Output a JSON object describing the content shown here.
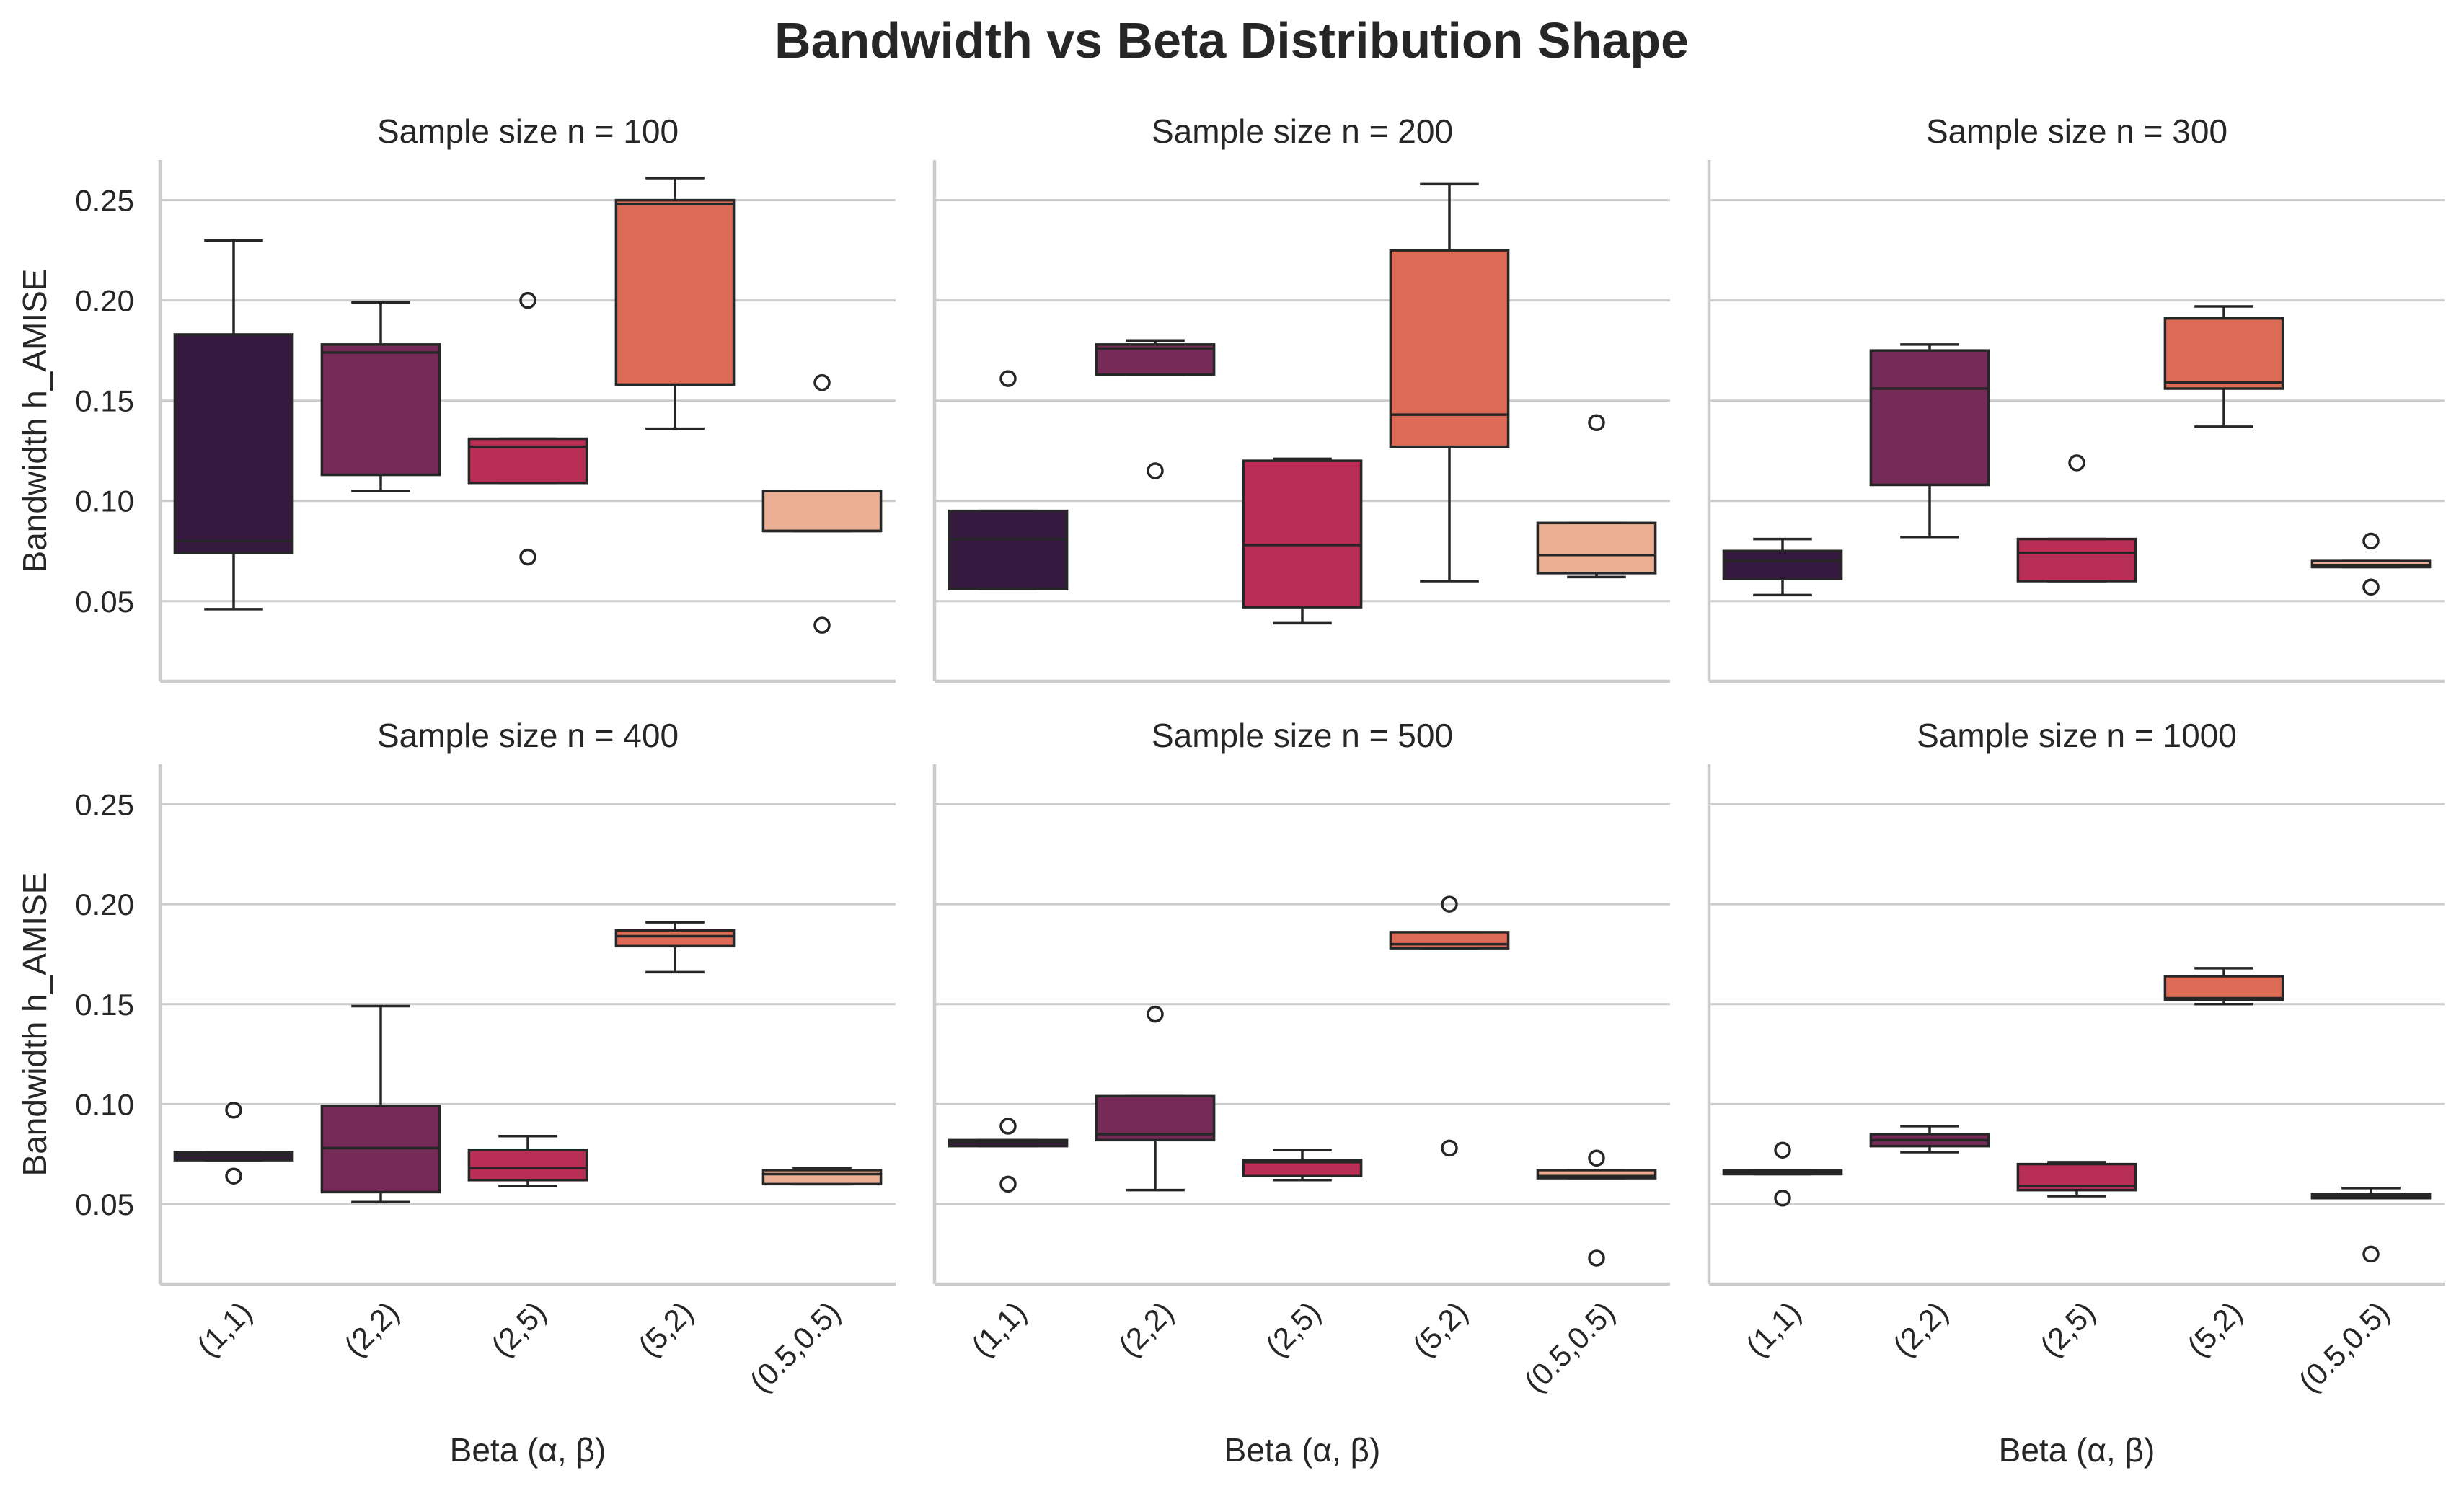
{
  "chart_data": {
    "type": "box",
    "title": "Bandwidth vs Beta Distribution Shape",
    "xlabel": "Beta (α, β)",
    "ylabel": "Bandwidth h_AMISE",
    "categories": [
      "(1,1)",
      "(2,2)",
      "(2,5)",
      "(5,2)",
      "(0.5,0.5)"
    ],
    "colors": [
      "#35193e",
      "#701f57",
      "#ad1759",
      "#e13342",
      "#f37651",
      "#f6b48f"
    ],
    "category_colors": [
      "#35193e",
      "#762a57",
      "#b92e54",
      "#dd6b55",
      "#ebb093"
    ],
    "ylim": [
      0.01,
      0.27
    ],
    "yticks": [
      0.05,
      0.1,
      0.15,
      0.2,
      0.25
    ],
    "ytick_labels": [
      "0.05",
      "0.10",
      "0.15",
      "0.20",
      "0.25"
    ],
    "grid": true,
    "panels": [
      {
        "title": "Sample size n = 100",
        "boxes": [
          {
            "category": "(1,1)",
            "whislo": 0.046,
            "q1": 0.074,
            "med": 0.08,
            "q3": 0.183,
            "whishi": 0.23,
            "fliers": []
          },
          {
            "category": "(2,2)",
            "whislo": 0.105,
            "q1": 0.113,
            "med": 0.174,
            "q3": 0.178,
            "whishi": 0.199,
            "fliers": []
          },
          {
            "category": "(2,5)",
            "whislo": 0.109,
            "q1": 0.109,
            "med": 0.127,
            "q3": 0.131,
            "whishi": 0.131,
            "fliers": [
              0.072,
              0.2
            ]
          },
          {
            "category": "(5,2)",
            "whislo": 0.136,
            "q1": 0.158,
            "med": 0.248,
            "q3": 0.25,
            "whishi": 0.261,
            "fliers": []
          },
          {
            "category": "(0.5,0.5)",
            "whislo": 0.085,
            "q1": 0.085,
            "med": 0.085,
            "q3": 0.105,
            "whishi": 0.105,
            "fliers": [
              0.038,
              0.159
            ]
          }
        ]
      },
      {
        "title": "Sample size n = 200",
        "boxes": [
          {
            "category": "(1,1)",
            "whislo": 0.056,
            "q1": 0.056,
            "med": 0.081,
            "q3": 0.095,
            "whishi": 0.095,
            "fliers": [
              0.161
            ]
          },
          {
            "category": "(2,2)",
            "whislo": 0.163,
            "q1": 0.163,
            "med": 0.176,
            "q3": 0.178,
            "whishi": 0.18,
            "fliers": [
              0.115
            ]
          },
          {
            "category": "(2,5)",
            "whislo": 0.039,
            "q1": 0.047,
            "med": 0.078,
            "q3": 0.12,
            "whishi": 0.121,
            "fliers": []
          },
          {
            "category": "(5,2)",
            "whislo": 0.06,
            "q1": 0.127,
            "med": 0.143,
            "q3": 0.225,
            "whishi": 0.258,
            "fliers": []
          },
          {
            "category": "(0.5,0.5)",
            "whislo": 0.062,
            "q1": 0.064,
            "med": 0.073,
            "q3": 0.089,
            "whishi": 0.089,
            "fliers": [
              0.139
            ]
          }
        ]
      },
      {
        "title": "Sample size n = 300",
        "boxes": [
          {
            "category": "(1,1)",
            "whislo": 0.053,
            "q1": 0.061,
            "med": 0.07,
            "q3": 0.075,
            "whishi": 0.081,
            "fliers": []
          },
          {
            "category": "(2,2)",
            "whislo": 0.082,
            "q1": 0.108,
            "med": 0.156,
            "q3": 0.175,
            "whishi": 0.178,
            "fliers": []
          },
          {
            "category": "(2,5)",
            "whislo": 0.06,
            "q1": 0.06,
            "med": 0.074,
            "q3": 0.081,
            "whishi": 0.081,
            "fliers": [
              0.119
            ]
          },
          {
            "category": "(5,2)",
            "whislo": 0.137,
            "q1": 0.156,
            "med": 0.159,
            "q3": 0.191,
            "whishi": 0.197,
            "fliers": []
          },
          {
            "category": "(0.5,0.5)",
            "whislo": 0.067,
            "q1": 0.067,
            "med": 0.068,
            "q3": 0.07,
            "whishi": 0.07,
            "fliers": [
              0.057,
              0.08
            ]
          }
        ]
      },
      {
        "title": "Sample size n = 400",
        "boxes": [
          {
            "category": "(1,1)",
            "whislo": 0.072,
            "q1": 0.072,
            "med": 0.074,
            "q3": 0.076,
            "whishi": 0.076,
            "fliers": [
              0.064,
              0.097
            ]
          },
          {
            "category": "(2,2)",
            "whislo": 0.051,
            "q1": 0.056,
            "med": 0.078,
            "q3": 0.099,
            "whishi": 0.149,
            "fliers": []
          },
          {
            "category": "(2,5)",
            "whislo": 0.059,
            "q1": 0.062,
            "med": 0.068,
            "q3": 0.077,
            "whishi": 0.084,
            "fliers": []
          },
          {
            "category": "(5,2)",
            "whislo": 0.166,
            "q1": 0.179,
            "med": 0.184,
            "q3": 0.187,
            "whishi": 0.191,
            "fliers": []
          },
          {
            "category": "(0.5,0.5)",
            "whislo": 0.06,
            "q1": 0.06,
            "med": 0.065,
            "q3": 0.067,
            "whishi": 0.068,
            "fliers": []
          }
        ]
      },
      {
        "title": "Sample size n = 500",
        "boxes": [
          {
            "category": "(1,1)",
            "whislo": 0.079,
            "q1": 0.079,
            "med": 0.081,
            "q3": 0.082,
            "whishi": 0.082,
            "fliers": [
              0.06,
              0.089
            ]
          },
          {
            "category": "(2,2)",
            "whislo": 0.057,
            "q1": 0.082,
            "med": 0.085,
            "q3": 0.104,
            "whishi": 0.104,
            "fliers": [
              0.145
            ]
          },
          {
            "category": "(2,5)",
            "whislo": 0.062,
            "q1": 0.064,
            "med": 0.071,
            "q3": 0.072,
            "whishi": 0.077,
            "fliers": []
          },
          {
            "category": "(5,2)",
            "whislo": 0.178,
            "q1": 0.178,
            "med": 0.18,
            "q3": 0.186,
            "whishi": 0.186,
            "fliers": [
              0.078,
              0.2
            ]
          },
          {
            "category": "(0.5,0.5)",
            "whislo": 0.063,
            "q1": 0.063,
            "med": 0.064,
            "q3": 0.067,
            "whishi": 0.067,
            "fliers": [
              0.023,
              0.073
            ]
          }
        ]
      },
      {
        "title": "Sample size n = 1000",
        "boxes": [
          {
            "category": "(1,1)",
            "whislo": 0.065,
            "q1": 0.065,
            "med": 0.066,
            "q3": 0.067,
            "whishi": 0.067,
            "fliers": [
              0.053,
              0.077
            ]
          },
          {
            "category": "(2,2)",
            "whislo": 0.076,
            "q1": 0.079,
            "med": 0.082,
            "q3": 0.085,
            "whishi": 0.089,
            "fliers": []
          },
          {
            "category": "(2,5)",
            "whislo": 0.054,
            "q1": 0.057,
            "med": 0.059,
            "q3": 0.07,
            "whishi": 0.071,
            "fliers": []
          },
          {
            "category": "(5,2)",
            "whislo": 0.15,
            "q1": 0.152,
            "med": 0.153,
            "q3": 0.164,
            "whishi": 0.168,
            "fliers": []
          },
          {
            "category": "(0.5,0.5)",
            "whislo": 0.053,
            "q1": 0.053,
            "med": 0.054,
            "q3": 0.055,
            "whishi": 0.058,
            "fliers": [
              0.025
            ]
          }
        ]
      }
    ]
  }
}
